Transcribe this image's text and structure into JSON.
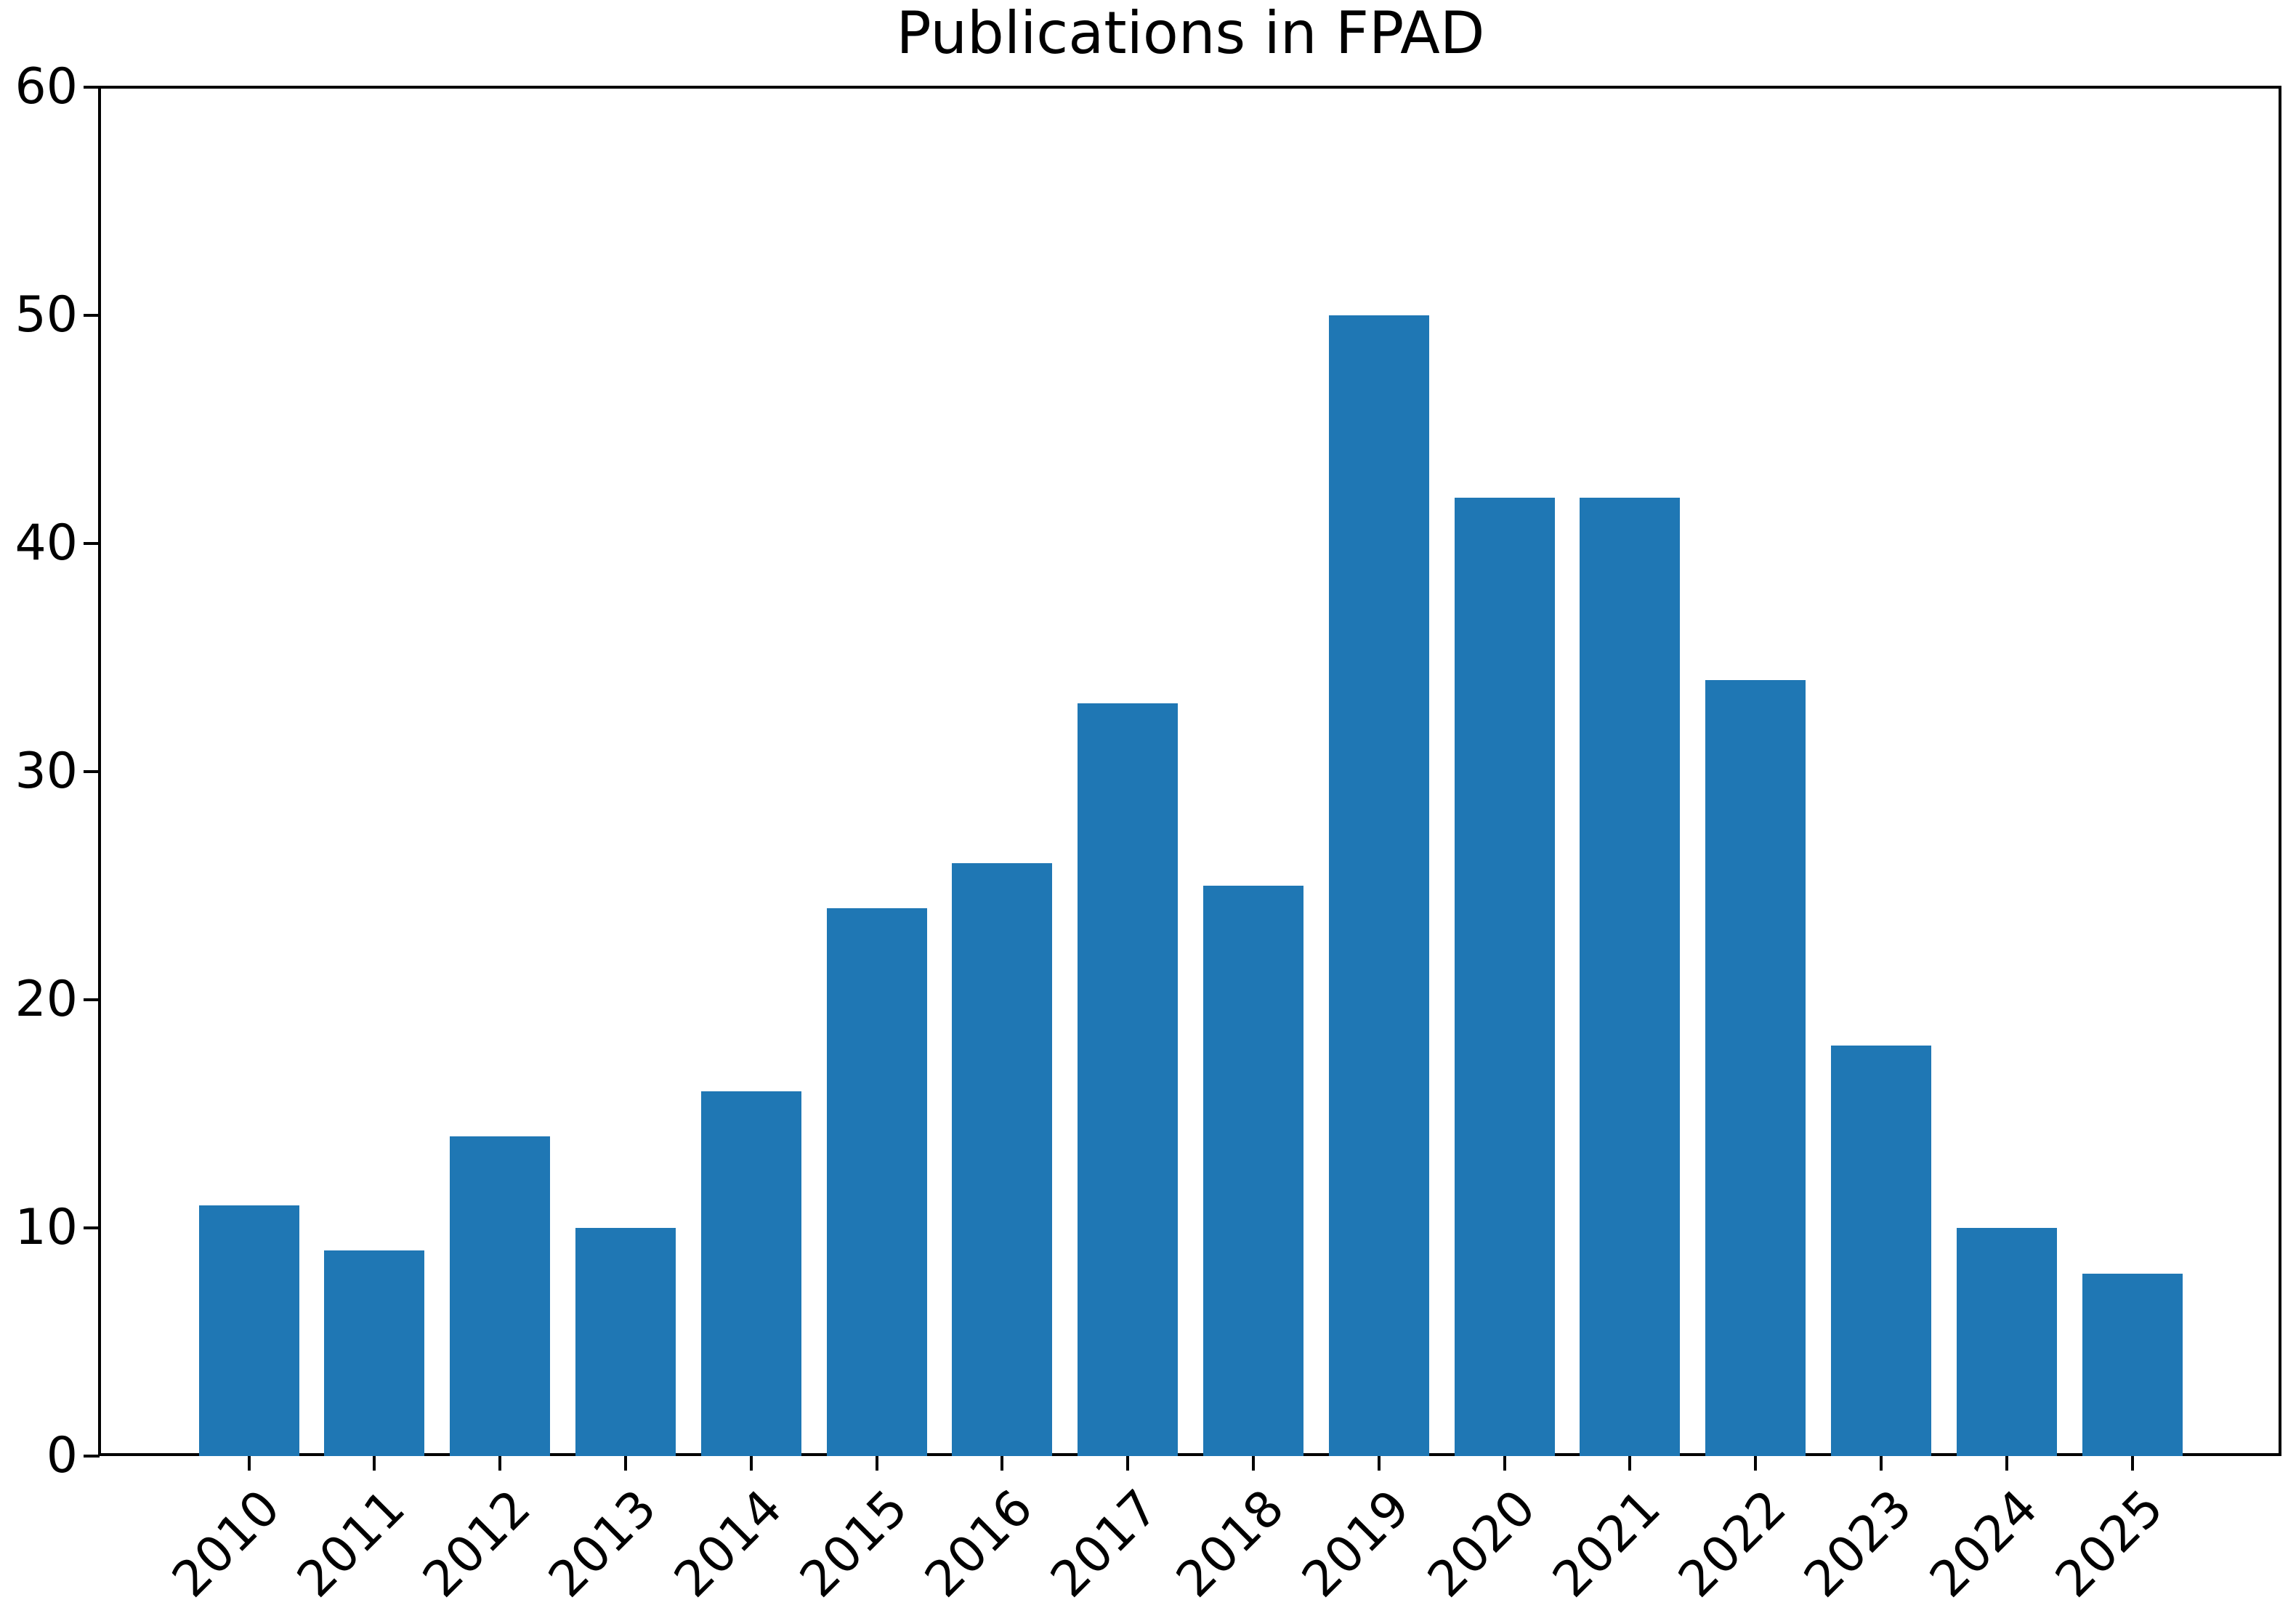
{
  "chart_data": {
    "type": "bar",
    "title": "Publications in FPAD",
    "categories": [
      "2010",
      "2011",
      "2012",
      "2013",
      "2014",
      "2015",
      "2016",
      "2017",
      "2018",
      "2019",
      "2020",
      "2021",
      "2022",
      "2023",
      "2024",
      "2025"
    ],
    "values": [
      11,
      9,
      14,
      10,
      16,
      24,
      26,
      33,
      25,
      50,
      42,
      42,
      34,
      18,
      10,
      8
    ],
    "xlabel": "",
    "ylabel": "",
    "ylim": [
      0,
      60
    ],
    "yticks": [
      0,
      10,
      20,
      30,
      40,
      50,
      60
    ],
    "x_tick_rotation": 45,
    "grid": false,
    "legend": "none",
    "bar_color": "#1f77b4",
    "axis_color": "#000000",
    "background_color": "#ffffff"
  }
}
